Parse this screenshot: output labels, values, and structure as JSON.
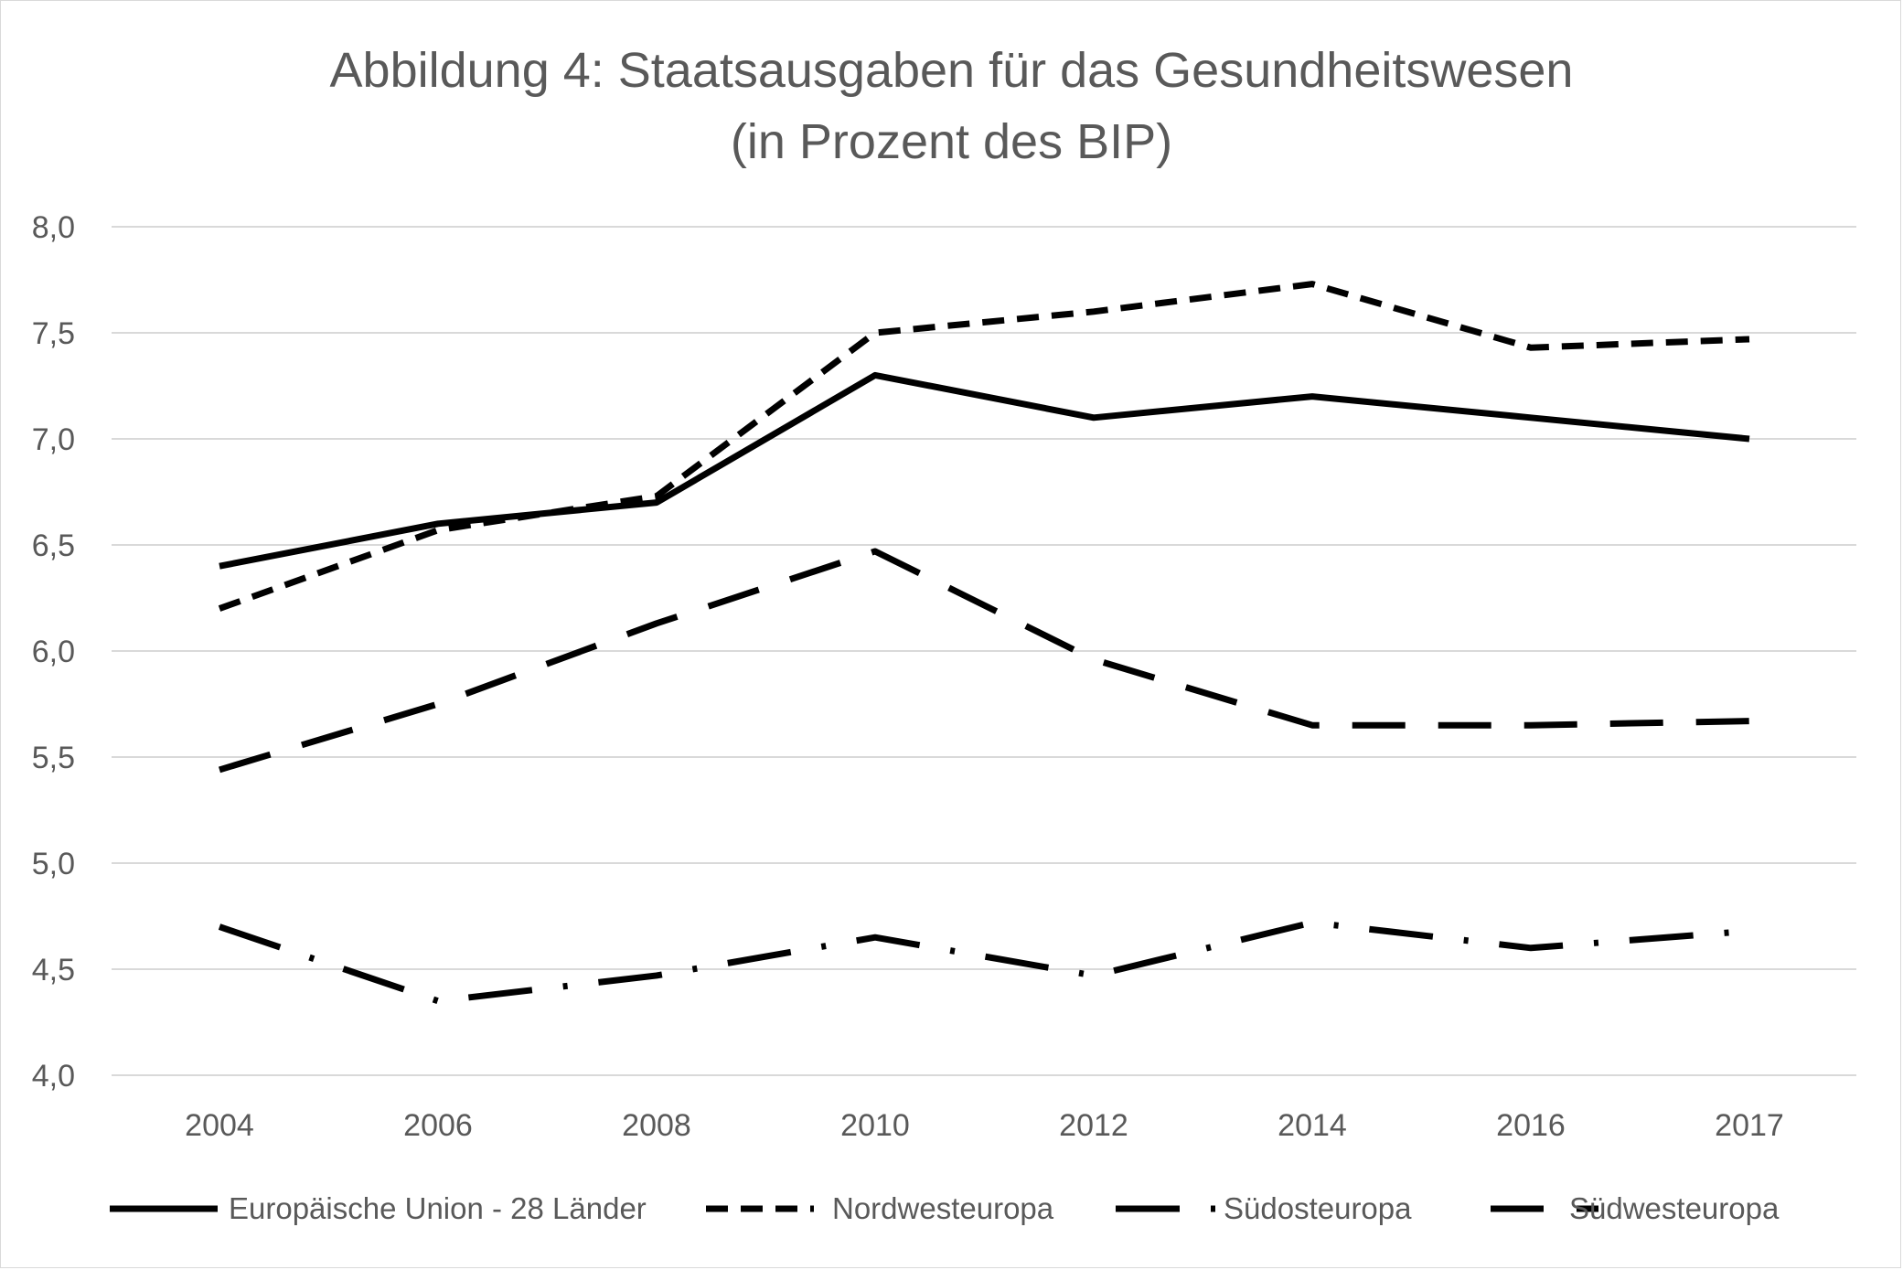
{
  "chart_data": {
    "type": "line",
    "title": [
      "Abbildung 4: Staatsausgaben für das Gesundheitswesen",
      "(in Prozent des BIP)"
    ],
    "categories": [
      "2004",
      "2006",
      "2008",
      "2010",
      "2012",
      "2014",
      "2016",
      "2017"
    ],
    "ylim": [
      4.0,
      8.0
    ],
    "yticks": [
      "4,0",
      "4,5",
      "5,0",
      "5,5",
      "6,0",
      "6,5",
      "7,0",
      "7,5",
      "8,0"
    ],
    "grid": true,
    "legend_position": "bottom",
    "series": [
      {
        "name": "Europäische Union - 28 Länder",
        "values": [
          6.4,
          6.6,
          6.7,
          7.3,
          7.1,
          7.2,
          7.1,
          7.0
        ],
        "style": "solid",
        "color": "#000000"
      },
      {
        "name": "Nordwesteuropa",
        "values": [
          6.2,
          6.57,
          6.73,
          7.5,
          7.6,
          7.73,
          7.43,
          7.47
        ],
        "style": "dash",
        "color": "#000000"
      },
      {
        "name": "Südosteuropa",
        "values": [
          4.7,
          4.35,
          4.47,
          4.65,
          4.47,
          4.72,
          4.6,
          4.68
        ],
        "style": "dash-dot",
        "color": "#000000"
      },
      {
        "name": "Südwesteuropa",
        "values": [
          5.44,
          5.75,
          6.13,
          6.47,
          5.96,
          5.65,
          5.65,
          5.67
        ],
        "style": "long-dash",
        "color": "#000000"
      }
    ]
  }
}
